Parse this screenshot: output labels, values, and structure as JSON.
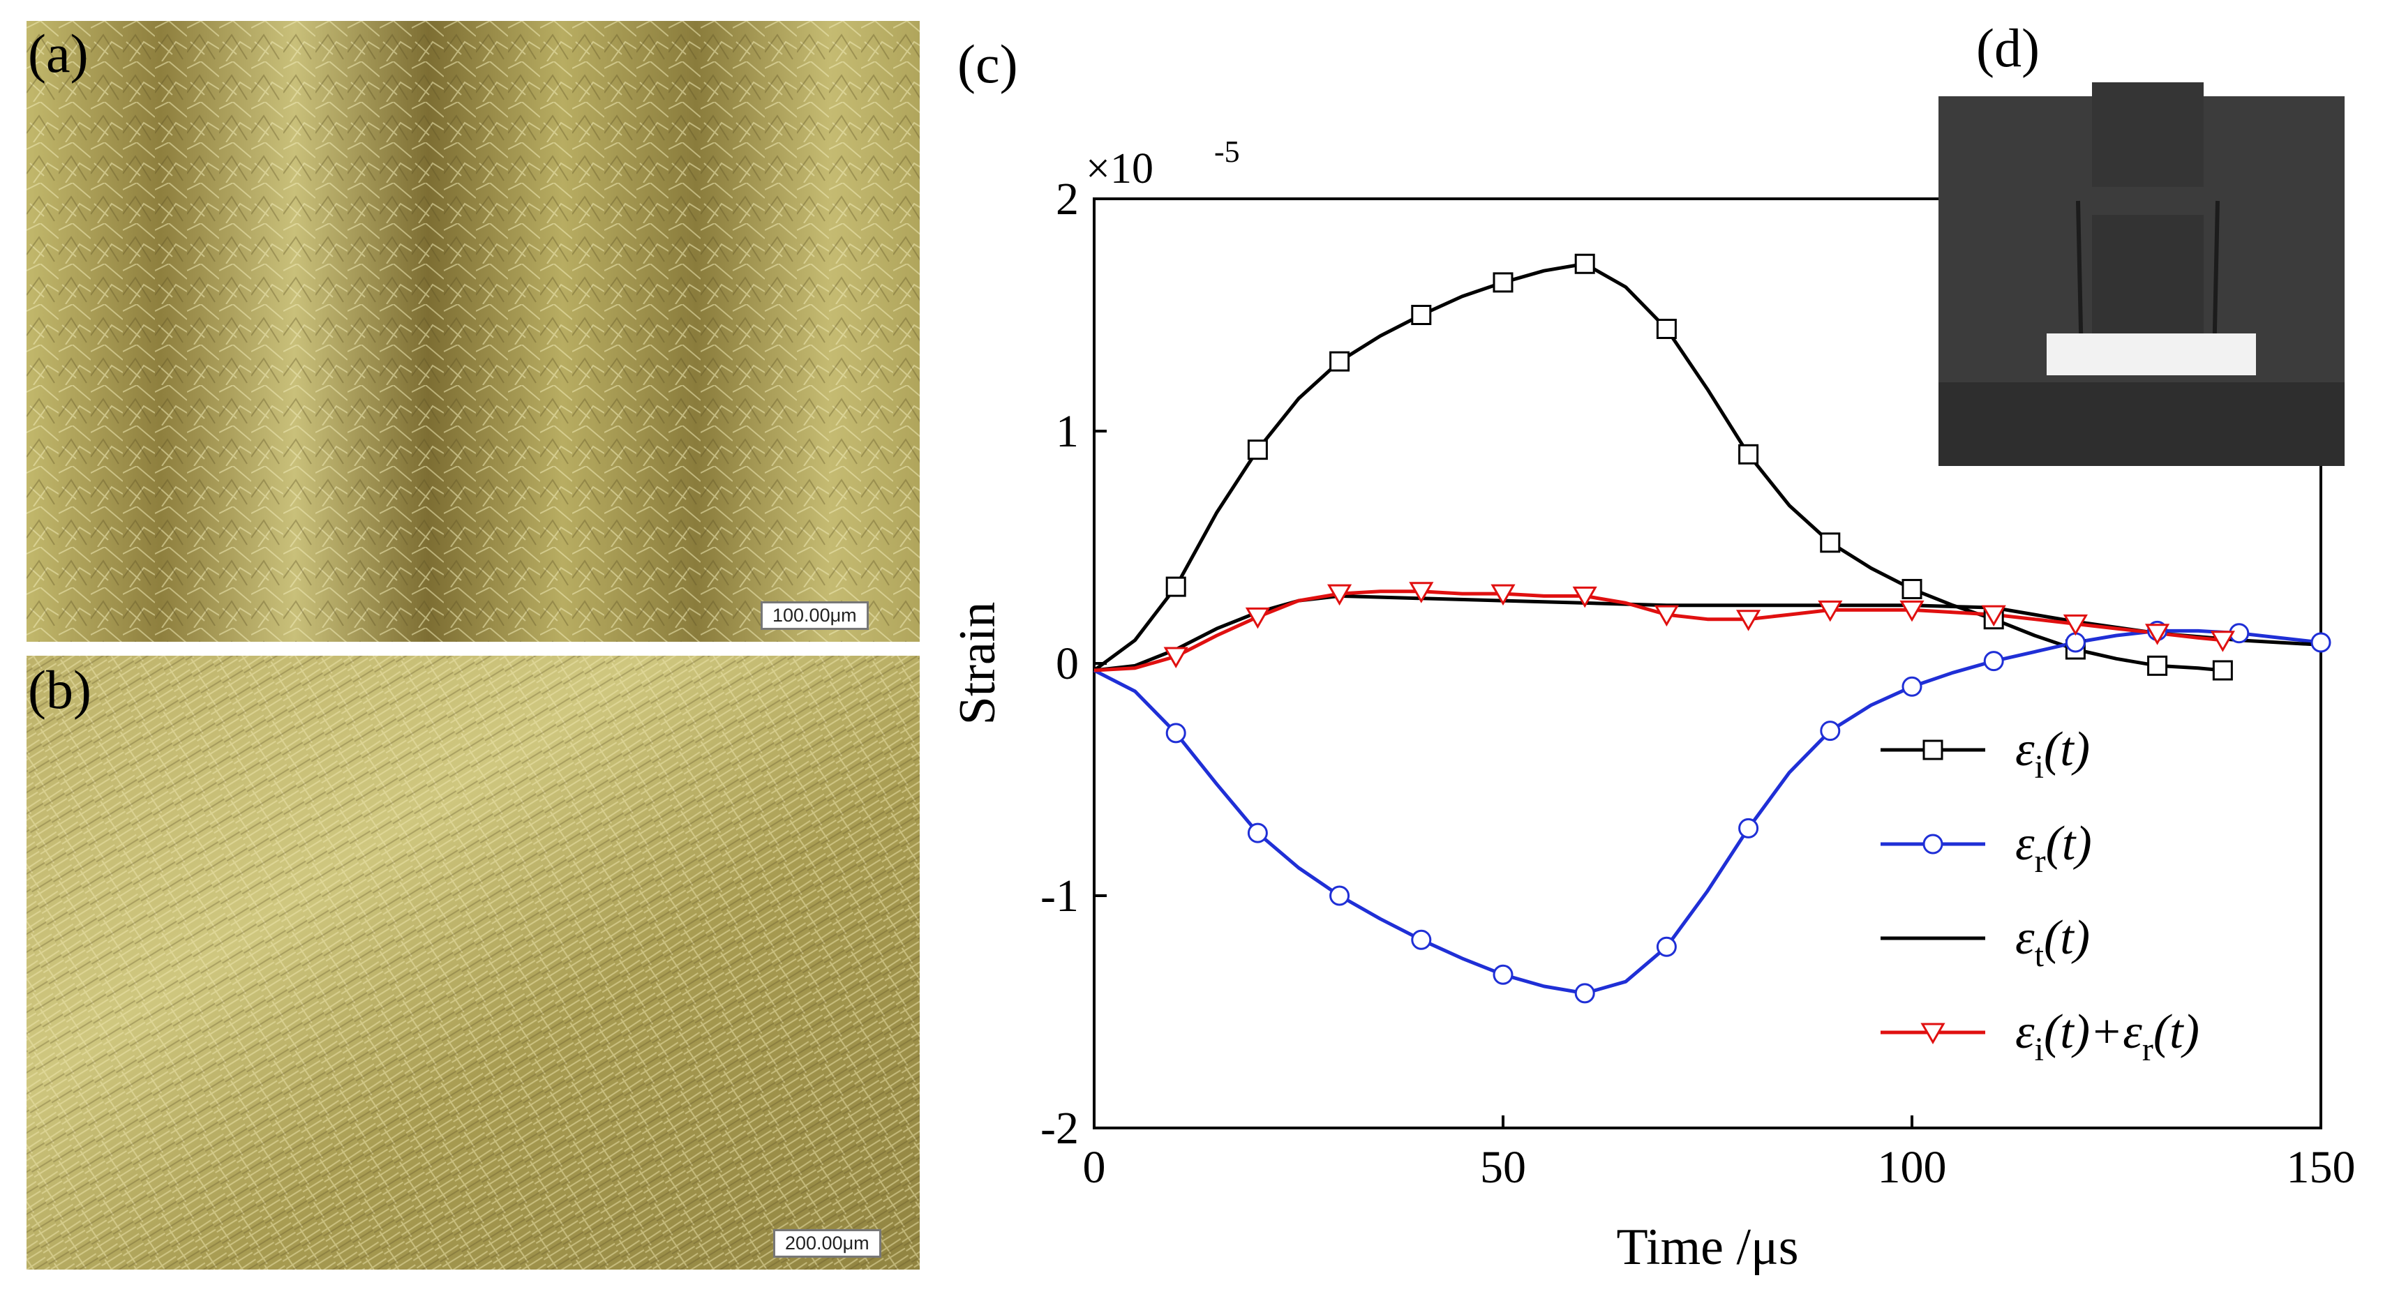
{
  "panels": {
    "a": {
      "label": "(a)",
      "scale": "100.00μm"
    },
    "b": {
      "label": "(b)",
      "scale": "200.00μm"
    },
    "c": {
      "label": "(c)"
    },
    "d": {
      "label": "(d)"
    }
  },
  "colors": {
    "incident": "#000000",
    "reflected": "#1f2fd6",
    "transmitted": "#000000",
    "sum": "#e01010",
    "micro_base": "#b7ac5e"
  },
  "chart_data": {
    "type": "line",
    "xlabel": "Time /μs",
    "ylabel": "Strain",
    "yscale_label_prefix": "×10",
    "yscale_label_exp": "-5",
    "xlim": [
      0,
      150
    ],
    "ylim": [
      -2,
      2
    ],
    "xticks": [
      0,
      50,
      100,
      150
    ],
    "yticks": [
      -2,
      -1,
      0,
      1,
      2
    ],
    "xtick_labels": [
      "0",
      "50",
      "100",
      "150"
    ],
    "ytick_labels": [
      "-2",
      "-1",
      "0",
      "1",
      "2"
    ],
    "legend_position": "lower-right",
    "series": [
      {
        "name": "εi(t)",
        "sym": "ε",
        "sub": "i",
        "tail": "(t)",
        "marker": "square",
        "color": "#000000",
        "x": [
          0,
          5,
          10,
          15,
          20,
          25,
          30,
          35,
          40,
          45,
          50,
          55,
          60,
          65,
          70,
          75,
          80,
          85,
          90,
          95,
          100,
          105,
          110,
          115,
          120,
          125,
          130,
          135,
          138
        ],
        "y": [
          -0.03,
          0.1,
          0.33,
          0.65,
          0.92,
          1.14,
          1.3,
          1.41,
          1.5,
          1.58,
          1.64,
          1.69,
          1.72,
          1.62,
          1.44,
          1.18,
          0.9,
          0.68,
          0.52,
          0.41,
          0.32,
          0.25,
          0.19,
          0.12,
          0.06,
          0.02,
          -0.01,
          -0.02,
          -0.03
        ],
        "marker_x": [
          10,
          20,
          30,
          40,
          50,
          60,
          70,
          80,
          90,
          100,
          110,
          120,
          130,
          138
        ]
      },
      {
        "name": "εr(t)",
        "sym": "ε",
        "sub": "r",
        "tail": "(t)",
        "marker": "circle",
        "color": "#1f2fd6",
        "x": [
          0,
          5,
          10,
          15,
          20,
          25,
          30,
          35,
          40,
          45,
          50,
          55,
          60,
          65,
          70,
          75,
          80,
          85,
          90,
          95,
          100,
          105,
          110,
          115,
          120,
          125,
          130,
          135,
          140,
          145,
          150
        ],
        "y": [
          -0.03,
          -0.12,
          -0.3,
          -0.52,
          -0.73,
          -0.88,
          -1.0,
          -1.1,
          -1.19,
          -1.27,
          -1.34,
          -1.39,
          -1.42,
          -1.37,
          -1.22,
          -0.98,
          -0.71,
          -0.47,
          -0.29,
          -0.18,
          -0.1,
          -0.04,
          0.01,
          0.05,
          0.09,
          0.12,
          0.14,
          0.14,
          0.13,
          0.11,
          0.09
        ],
        "marker_x": [
          10,
          20,
          30,
          40,
          50,
          60,
          70,
          80,
          90,
          100,
          110,
          120,
          130,
          140,
          150
        ]
      },
      {
        "name": "εt(t)",
        "sym": "ε",
        "sub": "t",
        "tail": "(t)",
        "marker": "none",
        "color": "#000000",
        "x": [
          0,
          5,
          10,
          15,
          20,
          25,
          30,
          40,
          50,
          60,
          70,
          80,
          90,
          100,
          110,
          120,
          130,
          140,
          150
        ],
        "y": [
          -0.03,
          -0.01,
          0.06,
          0.15,
          0.22,
          0.27,
          0.29,
          0.28,
          0.27,
          0.26,
          0.25,
          0.25,
          0.25,
          0.25,
          0.24,
          0.18,
          0.13,
          0.1,
          0.08
        ],
        "marker_x": []
      },
      {
        "name": "εi(t)+εr(t)",
        "sym": "ε",
        "sub": "i",
        "tail": "(t)+",
        "sym2": "ε",
        "sub2": "r",
        "tail2": "(t)",
        "marker": "triangle-down",
        "color": "#e01010",
        "x": [
          0,
          5,
          10,
          15,
          20,
          25,
          30,
          35,
          40,
          45,
          50,
          55,
          60,
          65,
          70,
          75,
          80,
          85,
          90,
          95,
          100,
          105,
          110,
          115,
          120,
          125,
          130,
          135,
          138
        ],
        "y": [
          -0.03,
          -0.02,
          0.03,
          0.12,
          0.2,
          0.27,
          0.3,
          0.31,
          0.31,
          0.3,
          0.3,
          0.29,
          0.29,
          0.26,
          0.21,
          0.19,
          0.19,
          0.21,
          0.23,
          0.23,
          0.23,
          0.22,
          0.21,
          0.19,
          0.17,
          0.15,
          0.13,
          0.11,
          0.1
        ],
        "marker_x": [
          10,
          20,
          30,
          40,
          50,
          60,
          70,
          80,
          90,
          100,
          110,
          120,
          130,
          138
        ]
      }
    ]
  }
}
